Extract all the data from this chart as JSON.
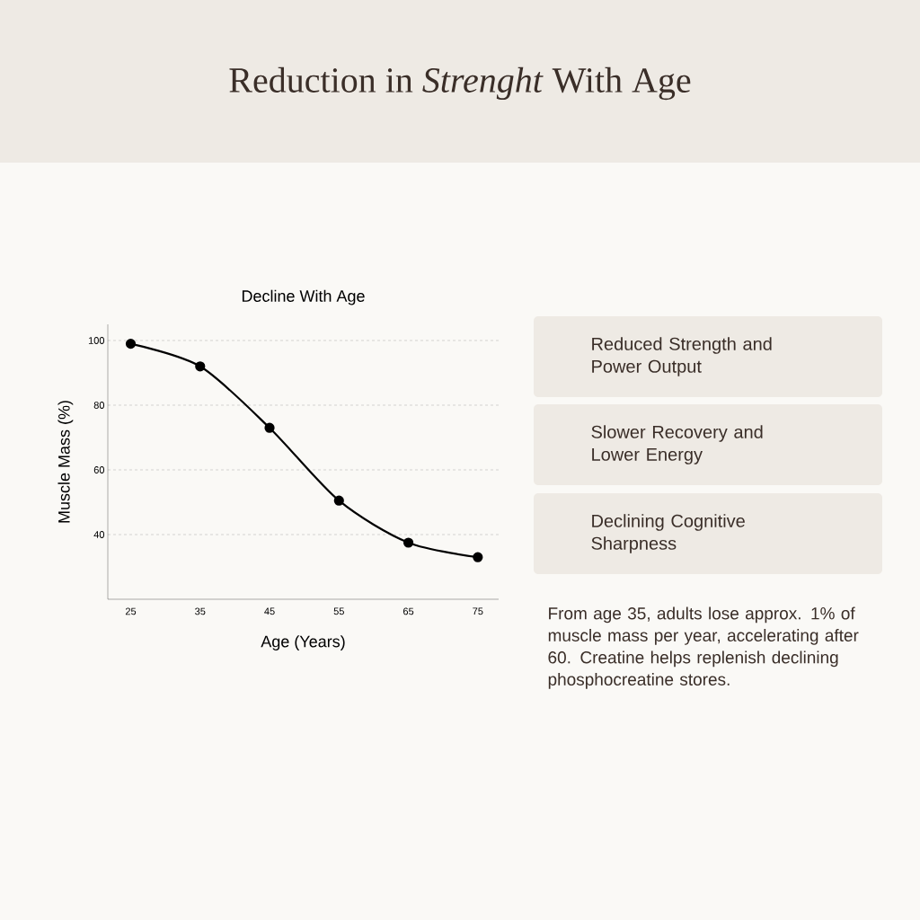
{
  "chart_data": {
    "type": "line",
    "title": "Decline With Age",
    "xlabel": "Age (Years)",
    "ylabel": "Muscle Mass (%)",
    "x": [
      25,
      35,
      45,
      55,
      65,
      75
    ],
    "series": [
      {
        "color": "#000000",
        "values": [
          99,
          92,
          73,
          50.5,
          37.5,
          33
        ]
      }
    ],
    "xlim": [
      21.7,
      78
    ],
    "ylim": [
      20,
      105
    ],
    "xticks": [
      25,
      35,
      45,
      55,
      65,
      75
    ],
    "yticks": [
      40,
      60,
      80,
      100
    ],
    "grid": "y",
    "marker": "circle",
    "line_style": "solid",
    "annotations": [
      "Reduction in *Strenght* With Age",
      "Reduced Strength and Power Output",
      "Slower Recovery and Lower Energy",
      "Declining Cognitive Sharpness",
      "From age 35, adults lose approx. 1% of muscle mass per year, accelerating after 60. Creatine helps replenish declining phosphocreatine stores."
    ]
  }
}
